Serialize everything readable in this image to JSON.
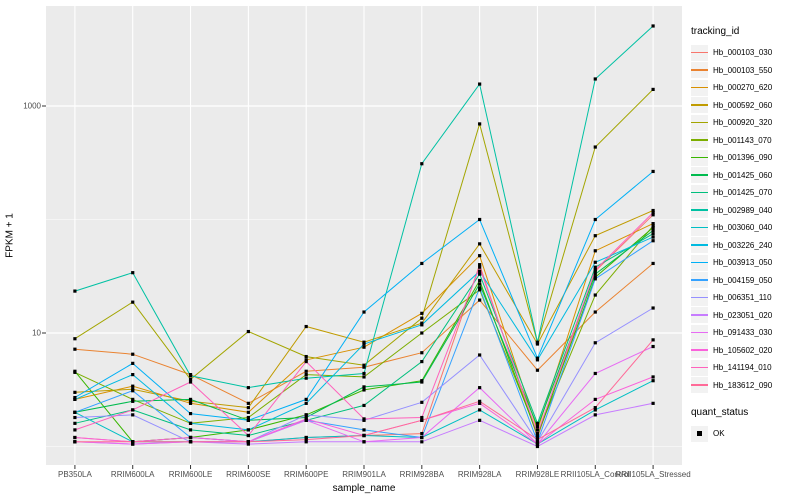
{
  "chart_data": {
    "type": "line",
    "title": "",
    "xlabel": "sample_name",
    "ylabel": "FPKM + 1",
    "y_scale": "log10",
    "y_tick_labels": [
      "1000",
      "10"
    ],
    "y_major_gridlines": [
      10,
      1000
    ],
    "y_minor_gridlines": [
      1,
      100
    ],
    "ylim": [
      0.7,
      7000
    ],
    "grid": "on",
    "legend_position": "right",
    "panel_background": "#ebebeb",
    "gridline_color": "#ffffff",
    "tick_label_color": "#4d4d4d",
    "point_color": "#000000",
    "categories": [
      "PB350LA",
      "RRIM600LA",
      "RRIM600LE",
      "RRIM600SE",
      "RRIM600PE",
      "RRIM901LA",
      "RRIM928BA",
      "RRIM928LA",
      "RRIM928LE",
      "RRII105LA_Control",
      "RRII105LA_Stressed"
    ],
    "series": [
      {
        "name": "Hb_000103_030",
        "color": "#F8766D",
        "values": [
          1.2,
          1.1,
          1.2,
          1.1,
          1.2,
          1.25,
          1.3,
          40,
          1.2,
          35,
          110
        ]
      },
      {
        "name": "Hb_000103_550",
        "color": "#EA8331",
        "values": [
          7.2,
          6.5,
          4.3,
          2.4,
          4.6,
          5.0,
          6.7,
          19.5,
          4.7,
          15.3,
          41
        ]
      },
      {
        "name": "Hb_000270_620",
        "color": "#D89000",
        "values": [
          2.6,
          3.4,
          2.4,
          2.0,
          5.8,
          7.5,
          14.9,
          48,
          1.4,
          53,
          92
        ]
      },
      {
        "name": "Hb_000592_060",
        "color": "#C09B00",
        "values": [
          3.0,
          3.2,
          2.5,
          2.2,
          11.4,
          8.3,
          12.2,
          61,
          8.0,
          72,
          120
        ]
      },
      {
        "name": "Hb_000920_320",
        "color": "#A3A500",
        "values": [
          8.9,
          18.7,
          3.9,
          10.3,
          6.2,
          5.2,
          13.5,
          695,
          8.2,
          435,
          1400
        ]
      },
      {
        "name": "Hb_001143_070",
        "color": "#7CAE00",
        "values": [
          4.5,
          2.6,
          1.6,
          1.8,
          4.3,
          4.1,
          10.0,
          24,
          1.3,
          21.6,
          88
        ]
      },
      {
        "name": "Hb_001396_090",
        "color": "#39B600",
        "values": [
          4.6,
          1.1,
          1.2,
          1.4,
          1.9,
          3.15,
          3.8,
          29,
          1.25,
          31,
          85
        ]
      },
      {
        "name": "Hb_001425_060",
        "color": "#00BB4E",
        "values": [
          2.0,
          2.5,
          2.6,
          1.7,
          1.8,
          3.35,
          3.7,
          27,
          1.5,
          33,
          80
        ]
      },
      {
        "name": "Hb_001425_070",
        "color": "#00BF7D",
        "values": [
          1.6,
          2.1,
          1.4,
          1.25,
          1.7,
          2.3,
          5.6,
          33,
          1.6,
          38,
          75
        ]
      },
      {
        "name": "Hb_002989_040",
        "color": "#00C1A3",
        "values": [
          23.4,
          34,
          4.2,
          3.3,
          4.0,
          4.4,
          310,
          1560,
          8.3,
          1730,
          5070
        ]
      },
      {
        "name": "Hb_003060_040",
        "color": "#00BFC4",
        "values": [
          2.0,
          1.1,
          1.1,
          1.1,
          1.2,
          1.25,
          1.2,
          2.1,
          1.05,
          2.1,
          3.8
        ]
      },
      {
        "name": "Hb_003226_240",
        "color": "#00BAE0",
        "values": [
          2.6,
          4.3,
          1.6,
          1.4,
          2.4,
          8.0,
          11.8,
          35,
          5.8,
          42,
          70
        ]
      },
      {
        "name": "Hb_003913_050",
        "color": "#00B0F6",
        "values": [
          2.7,
          5.4,
          1.95,
          1.7,
          2.6,
          15.3,
          41,
          100,
          6.0,
          100,
          265
        ]
      },
      {
        "name": "Hb_004159_050",
        "color": "#35A2FF",
        "values": [
          2.0,
          3.1,
          1.2,
          1.1,
          1.7,
          1.4,
          1.2,
          25,
          1.1,
          30,
          65
        ]
      },
      {
        "name": "Hb_006351_110",
        "color": "#9590FF",
        "values": [
          1.8,
          1.9,
          1.1,
          1.1,
          1.9,
          1.7,
          2.45,
          6.4,
          1.1,
          8.2,
          16.6
        ]
      },
      {
        "name": "Hb_023051_020",
        "color": "#C77CFF",
        "values": [
          1.1,
          1.05,
          1.1,
          1.05,
          1.1,
          1.1,
          1.1,
          1.7,
          1.0,
          1.9,
          2.4
        ]
      },
      {
        "name": "Hb_091433_030",
        "color": "#E76BF3",
        "values": [
          1.1,
          1.05,
          1.1,
          1.1,
          1.7,
          1.1,
          1.2,
          3.3,
          1.05,
          4.4,
          7.6
        ]
      },
      {
        "name": "Hb_105602_020",
        "color": "#FA62DB",
        "values": [
          1.2,
          1.1,
          1.2,
          1.1,
          1.75,
          1.25,
          1.7,
          2.4,
          1.05,
          2.6,
          4.1
        ]
      },
      {
        "name": "Hb_141194_010",
        "color": "#FF62BC",
        "values": [
          1.4,
          2.1,
          3.7,
          1.25,
          5.6,
          1.75,
          1.8,
          38,
          1.3,
          36,
          115
        ]
      },
      {
        "name": "Hb_183612_090",
        "color": "#FF6A98",
        "values": [
          1.1,
          1.1,
          1.1,
          1.1,
          1.15,
          1.25,
          1.7,
          2.5,
          1.15,
          2.2,
          8.7
        ]
      }
    ]
  },
  "legend": {
    "tracking_title": "tracking_id",
    "quant_title": "quant_status",
    "quant_items": [
      {
        "label": "OK"
      }
    ]
  }
}
